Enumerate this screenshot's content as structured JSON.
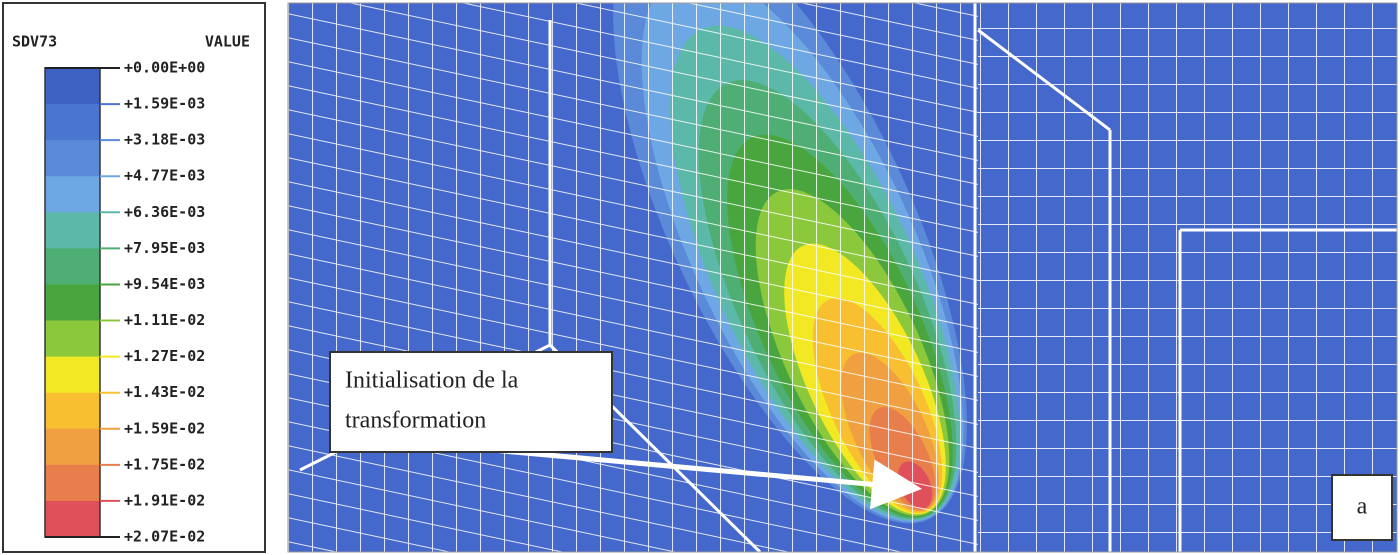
{
  "legend": {
    "variable": "SDV73",
    "heading": "VALUE",
    "labels": [
      "+0.00E+00",
      "+1.59E-03",
      "+3.18E-03",
      "+4.77E-03",
      "+6.36E-03",
      "+7.95E-03",
      "+9.54E-03",
      "+1.11E-02",
      "+1.27E-02",
      "+1.43E-02",
      "+1.59E-02",
      "+1.75E-02",
      "+1.91E-02",
      "+2.07E-02"
    ],
    "colors": [
      "#3e62c4",
      "#4a75d0",
      "#5a8ad8",
      "#6ea8e4",
      "#5cb8a8",
      "#4fae74",
      "#49a63e",
      "#8cc83c",
      "#f2e824",
      "#f8c030",
      "#f0a040",
      "#e87e4c",
      "#e0505a"
    ]
  },
  "annotation": {
    "lines": [
      "Initialisation de la",
      "transformation"
    ]
  },
  "panel_label": "a"
}
